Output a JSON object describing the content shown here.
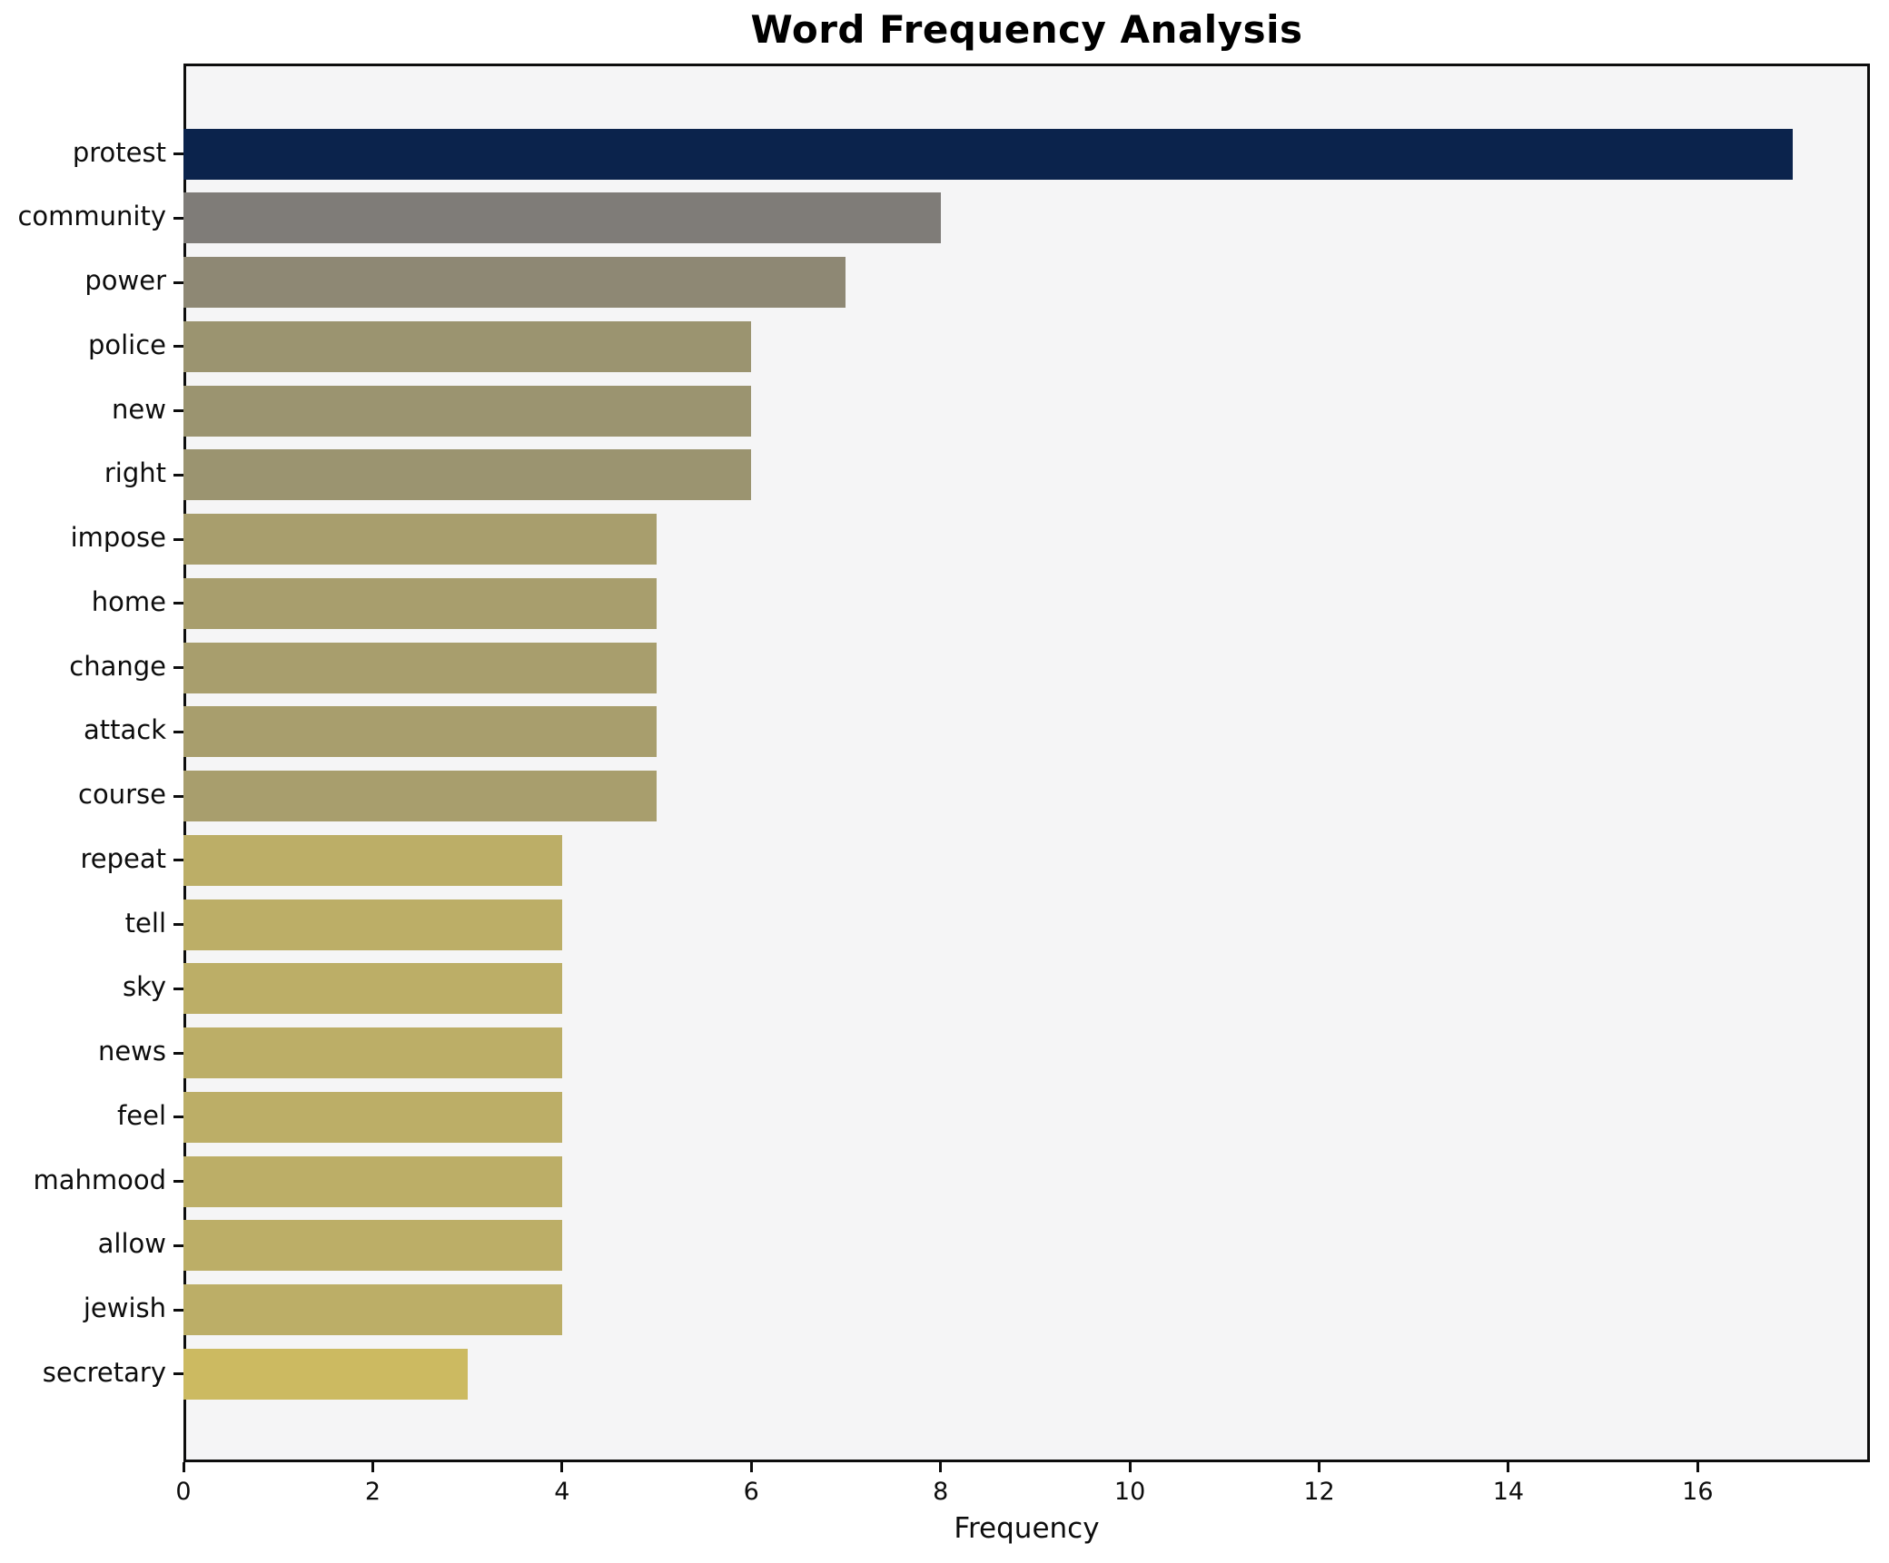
{
  "title": "Word Frequency Analysis",
  "xlabel": "Frequency",
  "chart_data": {
    "type": "bar",
    "orientation": "horizontal",
    "title": "Word Frequency Analysis",
    "xlabel": "Frequency",
    "ylabel": "",
    "categories": [
      "protest",
      "community",
      "power",
      "police",
      "new",
      "right",
      "impose",
      "home",
      "change",
      "attack",
      "course",
      "repeat",
      "tell",
      "sky",
      "news",
      "feel",
      "mahmood",
      "allow",
      "jewish",
      "secretary"
    ],
    "values": [
      17,
      8,
      7,
      6,
      6,
      6,
      5,
      5,
      5,
      5,
      5,
      4,
      4,
      4,
      4,
      4,
      4,
      4,
      4,
      3
    ],
    "bar_colors": [
      "#0b234c",
      "#7f7c78",
      "#8e8874",
      "#9b9470",
      "#9b9470",
      "#9b9470",
      "#a89e6d",
      "#a89e6d",
      "#a89e6d",
      "#a89e6d",
      "#a89e6d",
      "#bcae67",
      "#bcae67",
      "#bcae67",
      "#bcae67",
      "#bcae67",
      "#bcae67",
      "#bcae67",
      "#bcae67",
      "#ccba61"
    ],
    "xlim": [
      0,
      17.82
    ],
    "xticks": [
      0,
      2,
      4,
      6,
      8,
      10,
      12,
      14,
      16
    ],
    "grid": false,
    "legend": null,
    "plot_background": "#f5f5f6",
    "figure_background": "#ffffff",
    "colormap_note": "cividis navy-to-yellow, darkest = highest frequency"
  }
}
